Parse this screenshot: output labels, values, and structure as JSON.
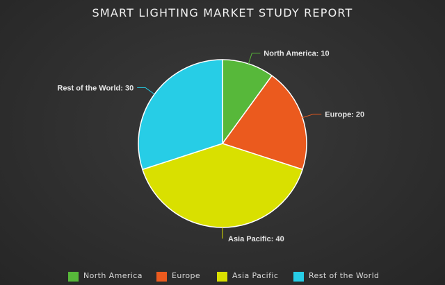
{
  "chart_data": {
    "type": "pie",
    "title": "SMART LIGHTING MARKET STUDY REPORT",
    "categories": [
      "North America",
      "Europe",
      "Asia Pacific",
      "Rest of the World"
    ],
    "values": [
      10,
      20,
      40,
      30
    ],
    "colors": [
      "#57b83a",
      "#eb5a1e",
      "#d9e000",
      "#27cde6"
    ],
    "data_labels": [
      "North America: 10",
      "Europe: 20",
      "Asia Pacific: 40",
      "Rest of the World: 30"
    ],
    "legend_labels": [
      "North America",
      "Europe",
      "Asia Pacific",
      "Rest of the World"
    ],
    "legend_position": "bottom"
  }
}
